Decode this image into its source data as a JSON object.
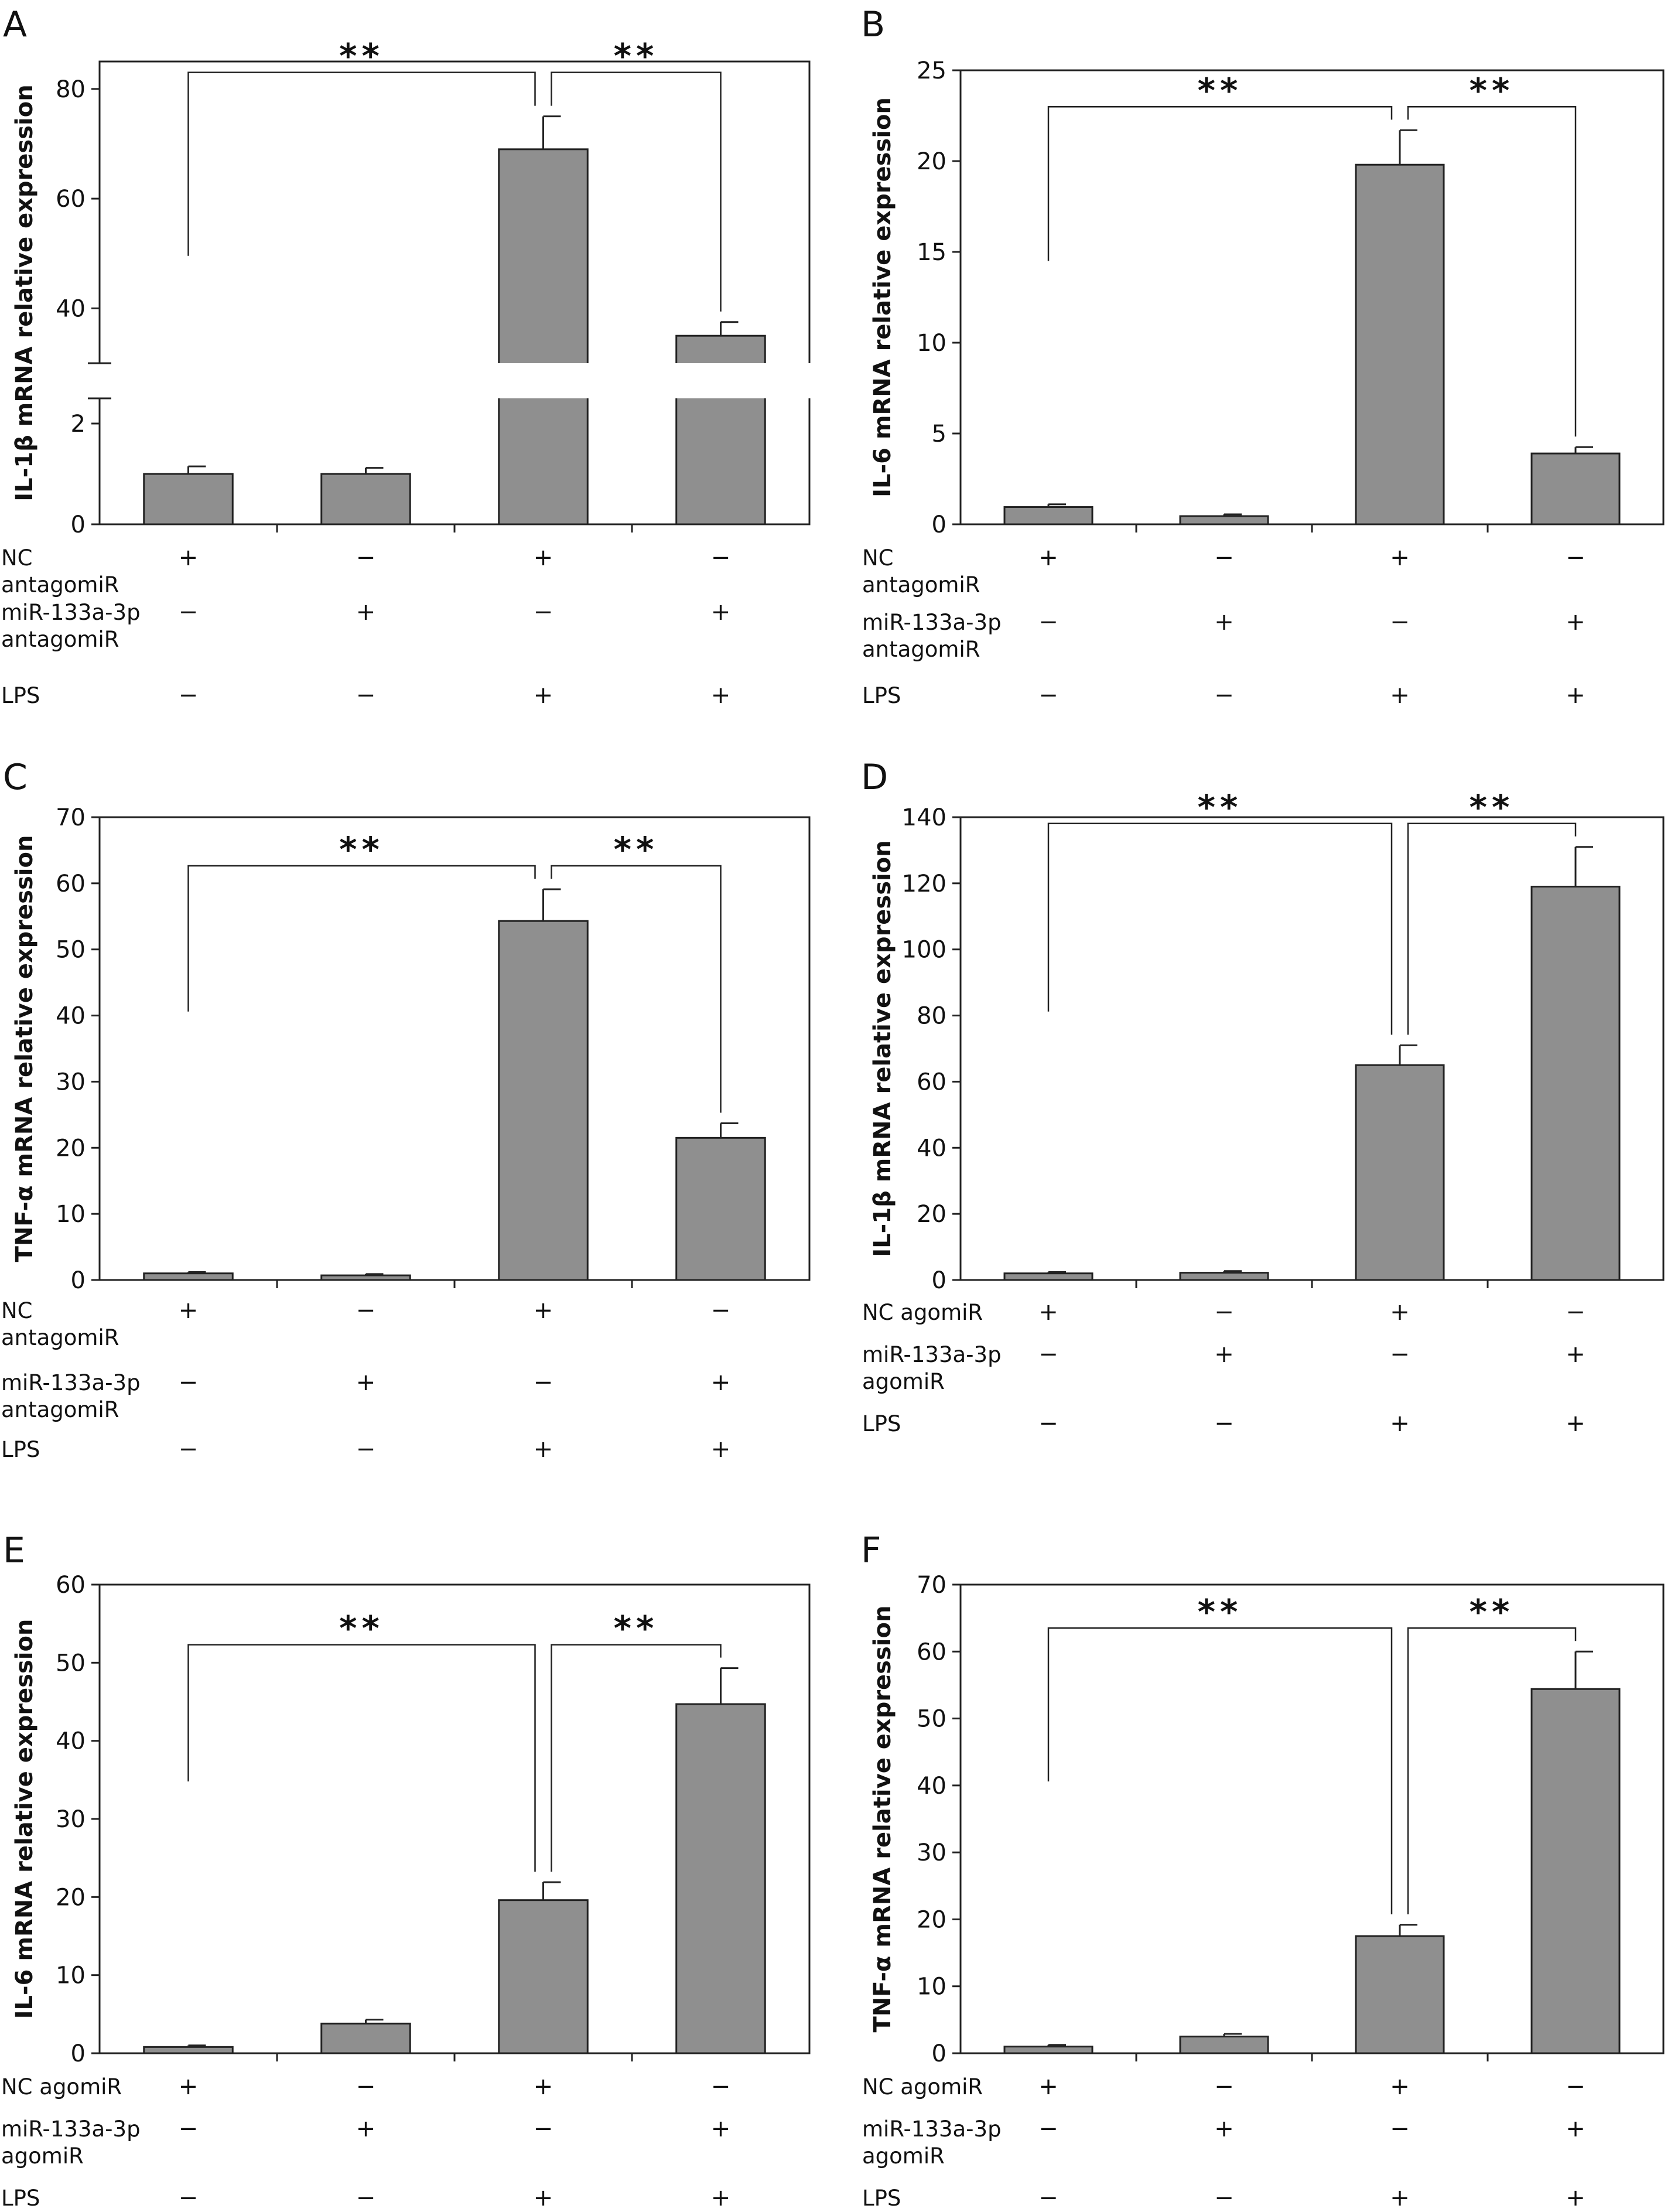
{
  "condition_sign": {
    "plus": "+",
    "minus": "−"
  },
  "colors": {
    "bar": "#8f8f8f",
    "frame": "#222222",
    "background": "#ffffff"
  },
  "chart_data": [
    {
      "panel": "A",
      "type": "bar",
      "ylabel": "IL-1β mRNA relative expression",
      "axis_break": {
        "lower": [
          0,
          2.5
        ],
        "upper": [
          30,
          85
        ]
      },
      "yticks": [
        0,
        2,
        40,
        60,
        80
      ],
      "values": [
        1.0,
        1.0,
        69,
        35
      ],
      "errors": [
        0.15,
        0.12,
        6,
        2.5
      ],
      "significance": [
        "**",
        "**"
      ],
      "row_labels": [
        "NC\nantagomiR",
        "miR-133a-3p\nantagomiR",
        "LPS"
      ],
      "signs": [
        [
          "+",
          "−",
          "+",
          "−"
        ],
        [
          "−",
          "+",
          "−",
          "+"
        ],
        [
          "−",
          "−",
          "+",
          "+"
        ]
      ]
    },
    {
      "panel": "B",
      "type": "bar",
      "ylabel": "IL-6 mRNA relative expression",
      "ylim": [
        0,
        25
      ],
      "yticks": [
        0,
        5,
        10,
        15,
        20,
        25
      ],
      "values": [
        0.95,
        0.45,
        19.8,
        3.9
      ],
      "errors": [
        0.15,
        0.1,
        1.9,
        0.35
      ],
      "significance": [
        "**",
        "**"
      ],
      "row_labels": [
        "NC\nantagomiR",
        "miR-133a-3p\nantagomiR",
        "LPS"
      ],
      "signs": [
        [
          "+",
          "−",
          "+",
          "−"
        ],
        [
          "−",
          "+",
          "−",
          "+"
        ],
        [
          "−",
          "−",
          "+",
          "+"
        ]
      ]
    },
    {
      "panel": "C",
      "type": "bar",
      "ylabel": "TNF-α mRNA relative expression",
      "ylim": [
        0,
        70
      ],
      "yticks": [
        0,
        10,
        20,
        30,
        40,
        50,
        60,
        70
      ],
      "values": [
        1.0,
        0.7,
        54.3,
        21.5
      ],
      "errors": [
        0.2,
        0.2,
        4.8,
        2.2
      ],
      "significance": [
        "**",
        "**"
      ],
      "row_labels": [
        "NC\nantagomiR",
        "miR-133a-3p\nantagomiR",
        "LPS"
      ],
      "signs": [
        [
          "+",
          "−",
          "+",
          "−"
        ],
        [
          "−",
          "+",
          "−",
          "+"
        ],
        [
          "−",
          "−",
          "+",
          "+"
        ]
      ]
    },
    {
      "panel": "D",
      "type": "bar",
      "ylabel": "IL-1β mRNA relative expression",
      "ylim": [
        0,
        140
      ],
      "yticks": [
        0,
        20,
        40,
        60,
        80,
        100,
        120,
        140
      ],
      "values": [
        2.0,
        2.2,
        65,
        119
      ],
      "errors": [
        0.4,
        0.5,
        6,
        12
      ],
      "significance": [
        "**",
        "**"
      ],
      "row_labels": [
        "NC agomiR",
        "miR-133a-3p\nagomiR",
        "LPS"
      ],
      "signs": [
        [
          "+",
          "−",
          "+",
          "−"
        ],
        [
          "−",
          "+",
          "−",
          "+"
        ],
        [
          "−",
          "−",
          "+",
          "+"
        ]
      ]
    },
    {
      "panel": "E",
      "type": "bar",
      "ylabel": "IL-6 mRNA relative expression",
      "ylim": [
        0,
        60
      ],
      "yticks": [
        0,
        10,
        20,
        30,
        40,
        50,
        60
      ],
      "values": [
        0.8,
        3.8,
        19.6,
        44.7
      ],
      "errors": [
        0.2,
        0.5,
        2.3,
        4.6
      ],
      "significance": [
        "**",
        "**"
      ],
      "row_labels": [
        "NC agomiR",
        "miR-133a-3p\nagomiR",
        "LPS"
      ],
      "signs": [
        [
          "+",
          "−",
          "+",
          "−"
        ],
        [
          "−",
          "+",
          "−",
          "+"
        ],
        [
          "−",
          "−",
          "+",
          "+"
        ]
      ]
    },
    {
      "panel": "F",
      "type": "bar",
      "ylabel": "TNF-α mRNA relative expression",
      "ylim": [
        0,
        70
      ],
      "yticks": [
        0,
        10,
        20,
        30,
        40,
        50,
        60,
        70
      ],
      "values": [
        1.0,
        2.5,
        17.5,
        54.4
      ],
      "errors": [
        0.25,
        0.4,
        1.7,
        5.6
      ],
      "significance": [
        "**",
        "**"
      ],
      "row_labels": [
        "NC agomiR",
        "miR-133a-3p\nagomiR",
        "LPS"
      ],
      "signs": [
        [
          "+",
          "−",
          "+",
          "−"
        ],
        [
          "−",
          "+",
          "−",
          "+"
        ],
        [
          "−",
          "−",
          "+",
          "+"
        ]
      ]
    }
  ]
}
